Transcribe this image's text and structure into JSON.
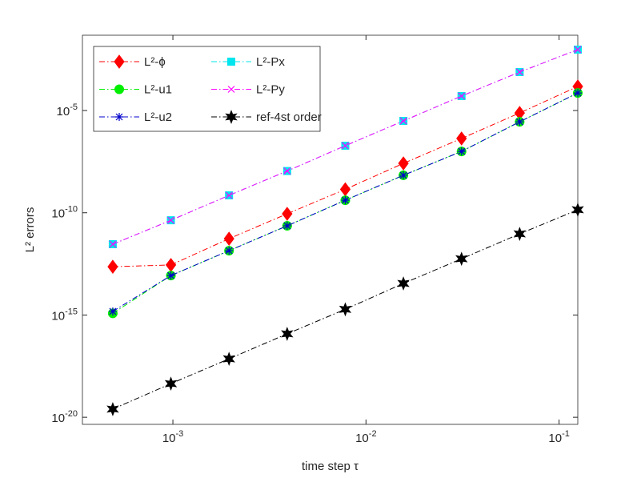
{
  "chart_data": {
    "type": "line",
    "xlabel": "time step τ",
    "ylabel": "L² errors",
    "log_x": true,
    "log_y": true,
    "legend": "upper left",
    "x": [
      0.00048828125,
      0.0009765625,
      0.001953125,
      0.00390625,
      0.0078125,
      0.015625,
      0.03125,
      0.0625,
      0.125
    ],
    "xlim": [
      0.00034,
      0.125
    ],
    "ylim": [
      4.5e-21,
      0.048
    ],
    "xticks": [
      {
        "value": 0.001,
        "label": "10",
        "exponent": "-3"
      },
      {
        "value": 0.01,
        "label": "10",
        "exponent": "-2"
      },
      {
        "value": 0.1,
        "label": "10",
        "exponent": "-1"
      }
    ],
    "yticks": [
      {
        "value": 1e-20,
        "label": "10",
        "exponent": "-20"
      },
      {
        "value": 1e-15,
        "label": "10",
        "exponent": "-15"
      },
      {
        "value": 1e-10,
        "label": "10",
        "exponent": "-10"
      },
      {
        "value": 1e-05,
        "label": "10",
        "exponent": "-5"
      }
    ],
    "series": [
      {
        "name": "L²-ϕ",
        "color": "#ff0000",
        "marker": "diamond",
        "values": [
          2.3e-13,
          2.8e-13,
          5.4e-12,
          8.9e-11,
          1.4e-09,
          2.6e-08,
          4.3e-07,
          7.6e-06,
          0.00015
        ]
      },
      {
        "name": "L²-u1",
        "color": "#00ee00",
        "marker": "circle",
        "values": [
          1.2e-15,
          8.5e-14,
          1.4e-12,
          2.3e-11,
          4.1e-10,
          6.8e-09,
          1e-07,
          2.8e-06,
          7.2e-05
        ]
      },
      {
        "name": "L²-u2",
        "color": "#0000cc",
        "marker": "asterisk",
        "values": [
          1.5e-15,
          8.5e-14,
          1.4e-12,
          2.3e-11,
          4.1e-10,
          6.8e-09,
          1e-07,
          2.8e-06,
          7.2e-05
        ]
      },
      {
        "name": "L²-Px",
        "color": "#00e5ee",
        "marker": "square",
        "values": [
          2.9e-12,
          4.3e-11,
          7.1e-10,
          1.1e-08,
          1.9e-07,
          3.1e-06,
          5.1e-05,
          0.00076,
          0.0095
        ]
      },
      {
        "name": "L²-Py",
        "color": "#ff00ff",
        "marker": "x",
        "values": [
          2.9e-12,
          4.3e-11,
          7.1e-10,
          1.1e-08,
          1.9e-07,
          3.1e-06,
          5.1e-05,
          0.00076,
          0.0095
        ]
      },
      {
        "name": "ref-4st order",
        "color": "#000000",
        "marker": "star",
        "values": [
          2.5e-20,
          4.4e-19,
          7.2e-18,
          1.2e-16,
          1.9e-15,
          3.5e-14,
          5.6e-13,
          9.3e-12,
          1.4e-10
        ]
      }
    ]
  }
}
